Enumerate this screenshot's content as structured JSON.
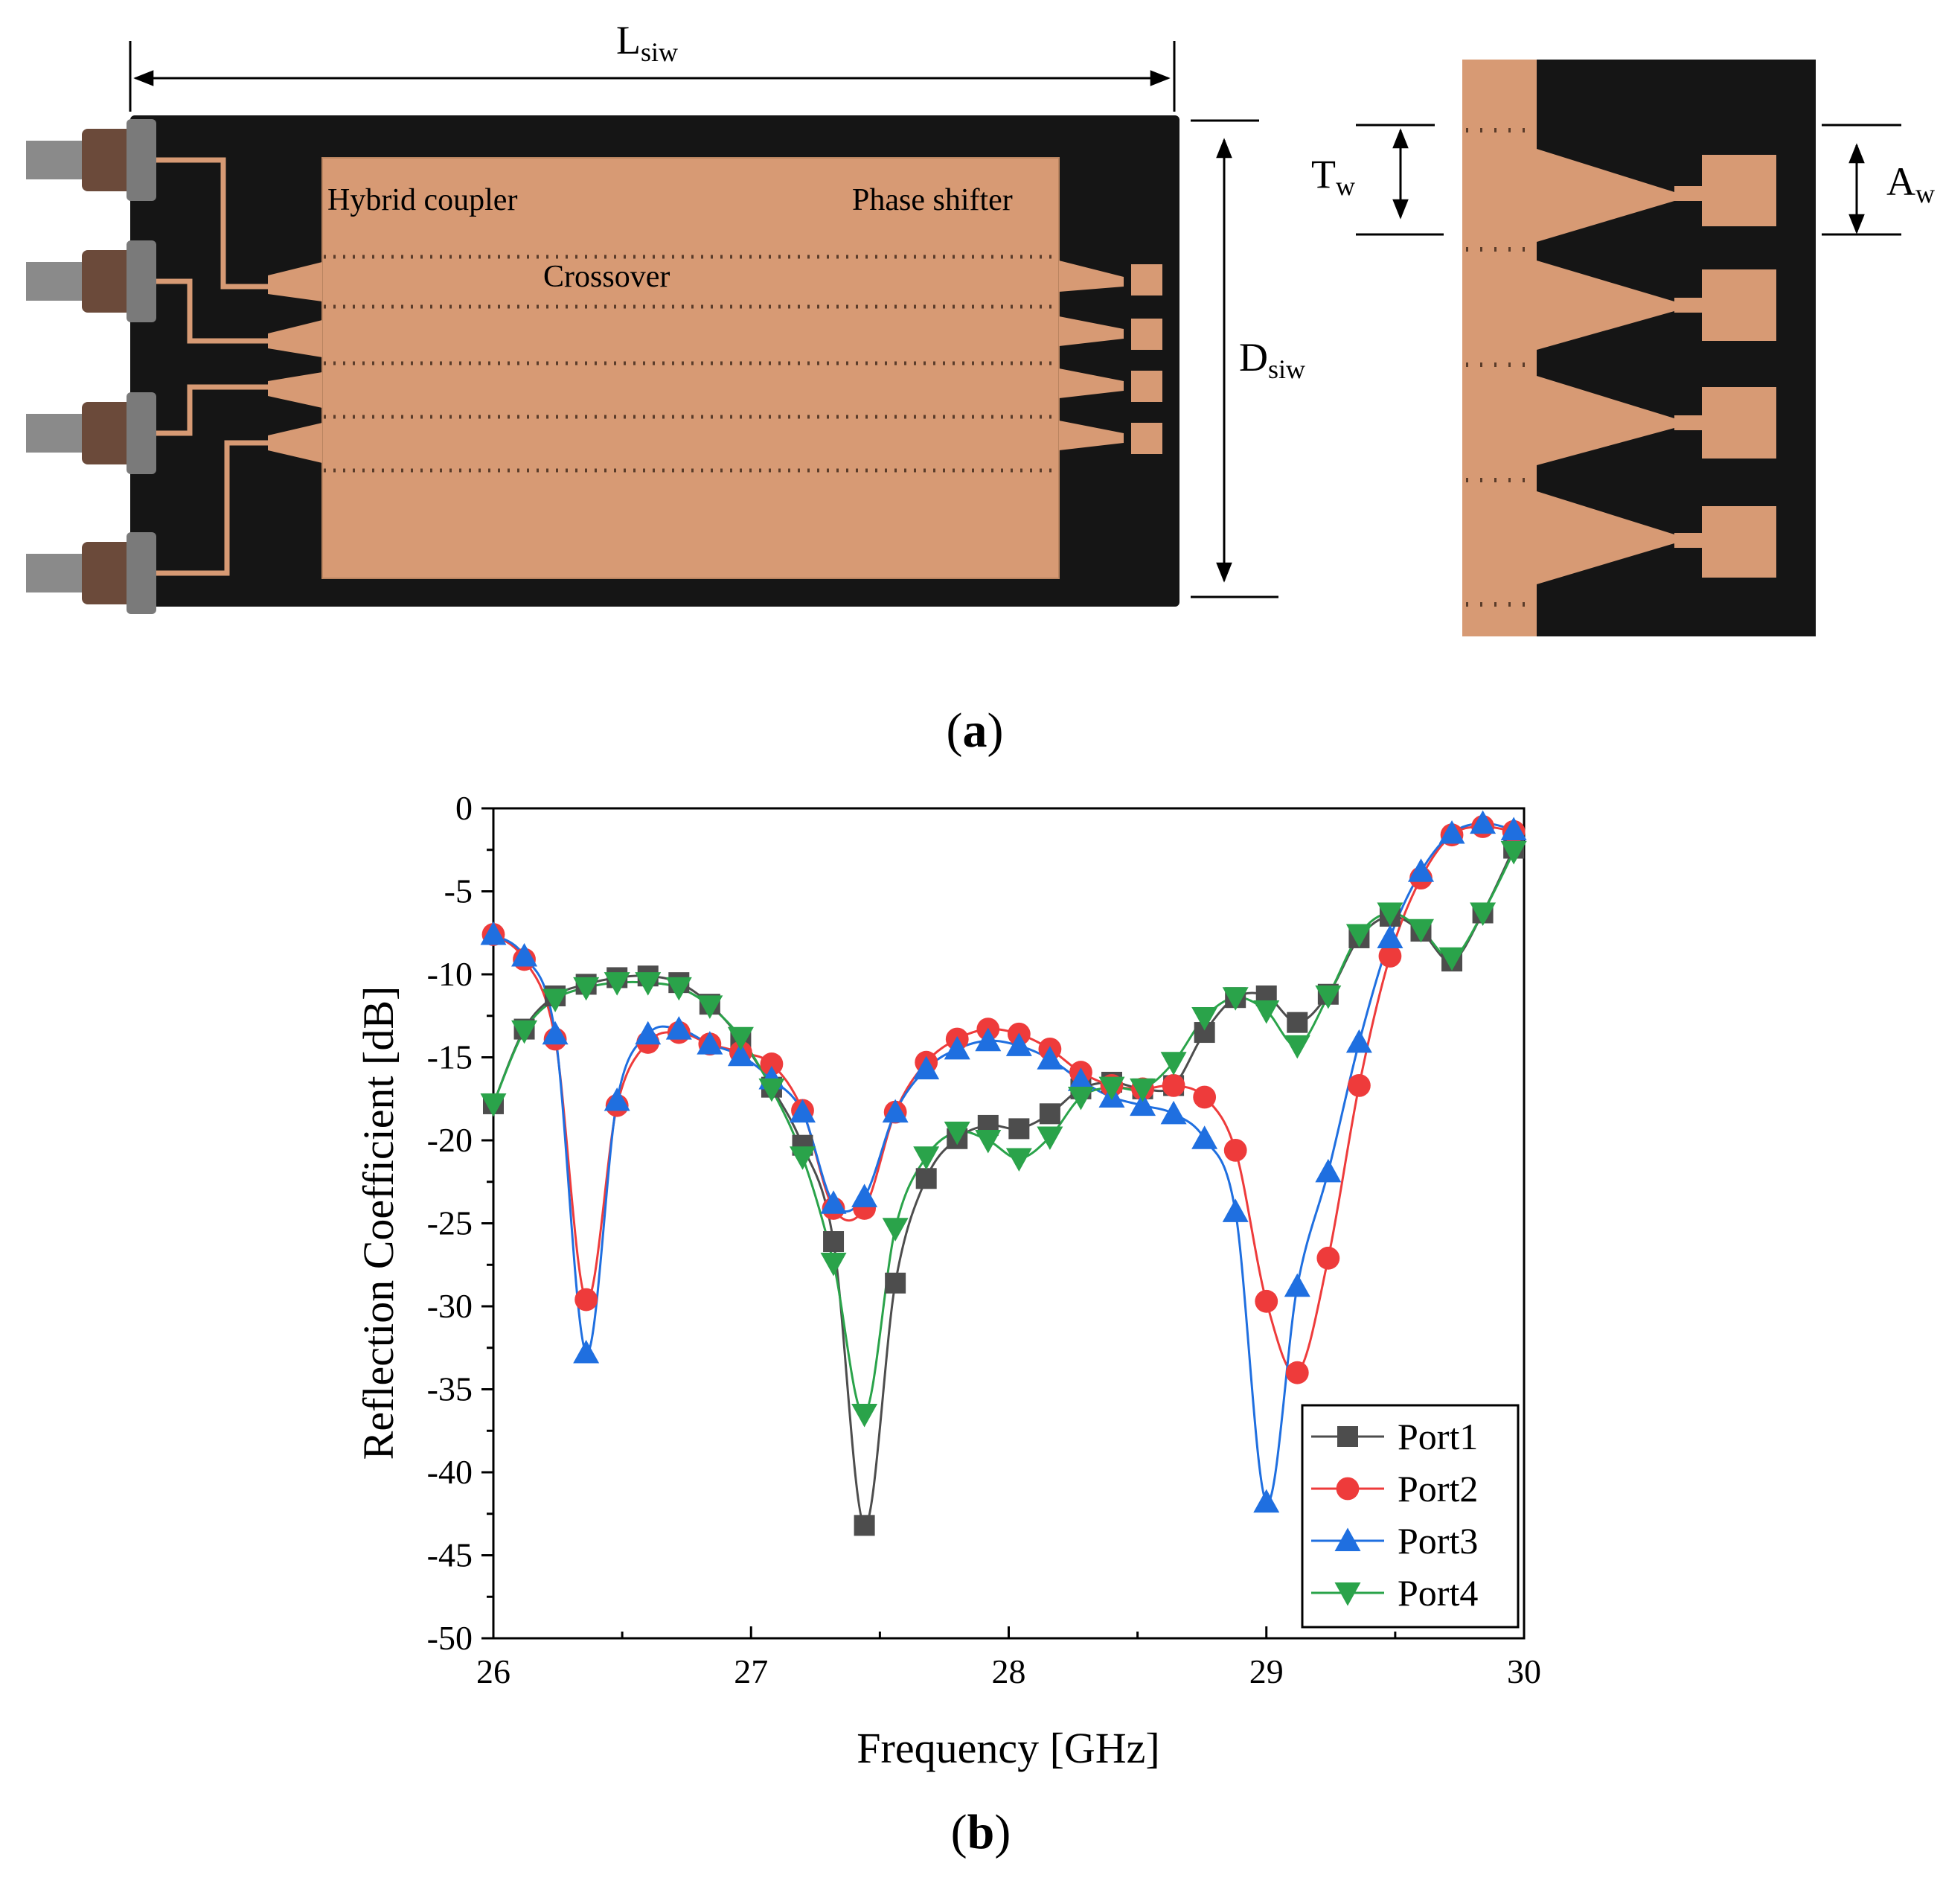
{
  "photo_a": {
    "labels": {
      "l_siw": "L",
      "l_siw_sub": "siw",
      "d_siw": "D",
      "d_siw_sub": "siw",
      "t_w": "T",
      "t_w_sub": "w",
      "a_w": "A",
      "a_w_sub": "w",
      "hybrid_coupler": "Hybrid coupler",
      "crossover": "Crossover",
      "phase_shifter": "Phase shifter"
    },
    "colors": {
      "board": "#151515",
      "copper": "#d79a74",
      "via": "#5a3c2a",
      "connector": "#8a8a8a"
    }
  },
  "panel_labels": {
    "a_open": "(",
    "a_letter": "a",
    "a_close": ")",
    "b_open": "(",
    "b_letter": "b",
    "b_close": ")"
  },
  "chart_data": {
    "type": "line",
    "title": "",
    "xlabel": "Frequency [GHz]",
    "ylabel": "Reflection Coefficient [dB]",
    "xlim": [
      26,
      30
    ],
    "ylim": [
      -50,
      0
    ],
    "xticks": [
      26,
      27,
      28,
      29,
      30
    ],
    "yticks": [
      0,
      -5,
      -10,
      -15,
      -20,
      -25,
      -30,
      -35,
      -40,
      -45,
      -50
    ],
    "grid": false,
    "legend_position": "bottom-right",
    "series": [
      {
        "name": "Port1",
        "color": "#4d4d4d",
        "marker": "square",
        "x": [
          26.0,
          26.12,
          26.24,
          26.36,
          26.48,
          26.6,
          26.72,
          26.84,
          26.96,
          27.08,
          27.2,
          27.32,
          27.44,
          27.56,
          27.68,
          27.8,
          27.92,
          28.04,
          28.16,
          28.28,
          28.4,
          28.52,
          28.64,
          28.76,
          28.88,
          29.0,
          29.12,
          29.24,
          29.36,
          29.48,
          29.6,
          29.72,
          29.84,
          29.96
        ],
        "y": [
          -17.8,
          -13.3,
          -11.3,
          -10.6,
          -10.2,
          -10.1,
          -10.5,
          -11.8,
          -13.9,
          -16.8,
          -20.3,
          -26.1,
          -43.2,
          -28.6,
          -22.3,
          -19.9,
          -19.1,
          -19.3,
          -18.4,
          -16.9,
          -16.5,
          -16.9,
          -16.7,
          -13.5,
          -11.4,
          -11.3,
          -12.9,
          -11.2,
          -7.8,
          -6.5,
          -7.4,
          -9.2,
          -6.3,
          -2.4
        ]
      },
      {
        "name": "Port2",
        "color": "#ee3b3b",
        "marker": "circle",
        "x": [
          26.0,
          26.12,
          26.24,
          26.36,
          26.48,
          26.6,
          26.72,
          26.84,
          26.96,
          27.08,
          27.2,
          27.32,
          27.44,
          27.56,
          27.68,
          27.8,
          27.92,
          28.04,
          28.16,
          28.28,
          28.4,
          28.52,
          28.64,
          28.76,
          28.88,
          29.0,
          29.12,
          29.24,
          29.36,
          29.48,
          29.6,
          29.72,
          29.84,
          29.96
        ],
        "y": [
          -7.6,
          -9.1,
          -13.9,
          -29.6,
          -17.9,
          -14.1,
          -13.5,
          -14.2,
          -14.7,
          -15.4,
          -18.2,
          -24.1,
          -24.1,
          -18.3,
          -15.3,
          -13.9,
          -13.3,
          -13.6,
          -14.5,
          -15.9,
          -16.7,
          -16.9,
          -16.7,
          -17.4,
          -20.6,
          -29.7,
          -34.0,
          -27.1,
          -16.7,
          -8.9,
          -4.2,
          -1.6,
          -1.1,
          -1.4
        ]
      },
      {
        "name": "Port3",
        "color": "#1f6fe0",
        "marker": "triangle-up",
        "x": [
          26.0,
          26.12,
          26.24,
          26.36,
          26.48,
          26.6,
          26.72,
          26.84,
          26.96,
          27.08,
          27.2,
          27.32,
          27.44,
          27.56,
          27.68,
          27.8,
          27.92,
          28.04,
          28.16,
          28.28,
          28.4,
          28.52,
          28.64,
          28.76,
          28.88,
          29.0,
          29.12,
          29.24,
          29.36,
          29.48,
          29.6,
          29.72,
          29.84,
          29.96
        ],
        "y": [
          -7.6,
          -8.9,
          -13.6,
          -32.8,
          -17.6,
          -13.6,
          -13.3,
          -14.2,
          -14.9,
          -16.3,
          -18.3,
          -23.8,
          -23.4,
          -18.3,
          -15.7,
          -14.5,
          -14.0,
          -14.3,
          -15.1,
          -16.4,
          -17.4,
          -17.9,
          -18.4,
          -19.9,
          -24.3,
          -41.8,
          -28.8,
          -21.9,
          -14.1,
          -7.8,
          -3.8,
          -1.5,
          -0.9,
          -1.3
        ]
      },
      {
        "name": "Port4",
        "color": "#2aa34a",
        "marker": "triangle-down",
        "x": [
          26.0,
          26.12,
          26.24,
          26.36,
          26.48,
          26.6,
          26.72,
          26.84,
          26.96,
          27.08,
          27.2,
          27.32,
          27.44,
          27.56,
          27.68,
          27.8,
          27.92,
          28.04,
          28.16,
          28.28,
          28.4,
          28.52,
          28.64,
          28.76,
          28.88,
          29.0,
          29.12,
          29.24,
          29.36,
          29.48,
          29.6,
          29.72,
          29.84,
          29.96
        ],
        "y": [
          -17.8,
          -13.4,
          -11.5,
          -10.8,
          -10.5,
          -10.5,
          -10.8,
          -11.9,
          -13.8,
          -16.9,
          -21.0,
          -27.4,
          -36.5,
          -25.3,
          -21.0,
          -19.5,
          -20.0,
          -21.1,
          -19.8,
          -17.4,
          -16.8,
          -16.9,
          -15.3,
          -12.6,
          -11.4,
          -12.2,
          -14.3,
          -11.3,
          -7.6,
          -6.3,
          -7.3,
          -9.0,
          -6.3,
          -2.6
        ]
      }
    ]
  }
}
